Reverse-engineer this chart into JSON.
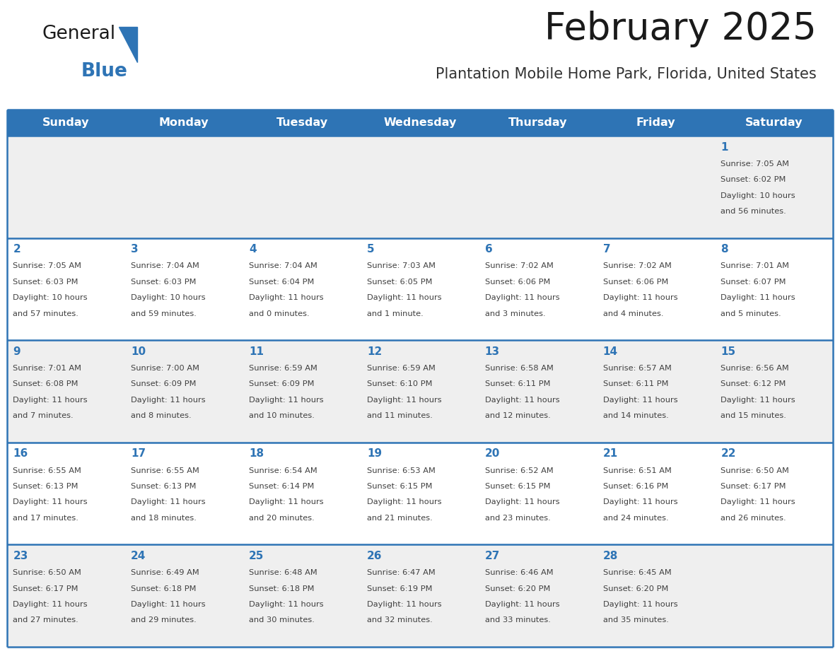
{
  "title": "February 2025",
  "subtitle": "Plantation Mobile Home Park, Florida, United States",
  "header_bg": "#2E74B5",
  "header_text_color": "#FFFFFF",
  "cell_bg_row0": "#EFEFEF",
  "cell_bg_row1": "#FFFFFF",
  "cell_bg_row2": "#EFEFEF",
  "cell_bg_row3": "#FFFFFF",
  "cell_bg_row4": "#EFEFEF",
  "day_number_color": "#2E74B5",
  "info_text_color": "#404040",
  "separator_color": "#2E74B5",
  "days_of_week": [
    "Sunday",
    "Monday",
    "Tuesday",
    "Wednesday",
    "Thursday",
    "Friday",
    "Saturday"
  ],
  "weeks": [
    [
      {
        "day": null,
        "sunrise": null,
        "sunset": null,
        "daylight": null
      },
      {
        "day": null,
        "sunrise": null,
        "sunset": null,
        "daylight": null
      },
      {
        "day": null,
        "sunrise": null,
        "sunset": null,
        "daylight": null
      },
      {
        "day": null,
        "sunrise": null,
        "sunset": null,
        "daylight": null
      },
      {
        "day": null,
        "sunrise": null,
        "sunset": null,
        "daylight": null
      },
      {
        "day": null,
        "sunrise": null,
        "sunset": null,
        "daylight": null
      },
      {
        "day": 1,
        "sunrise": "7:05 AM",
        "sunset": "6:02 PM",
        "daylight": "10 hours\nand 56 minutes."
      }
    ],
    [
      {
        "day": 2,
        "sunrise": "7:05 AM",
        "sunset": "6:03 PM",
        "daylight": "10 hours\nand 57 minutes."
      },
      {
        "day": 3,
        "sunrise": "7:04 AM",
        "sunset": "6:03 PM",
        "daylight": "10 hours\nand 59 minutes."
      },
      {
        "day": 4,
        "sunrise": "7:04 AM",
        "sunset": "6:04 PM",
        "daylight": "11 hours\nand 0 minutes."
      },
      {
        "day": 5,
        "sunrise": "7:03 AM",
        "sunset": "6:05 PM",
        "daylight": "11 hours\nand 1 minute."
      },
      {
        "day": 6,
        "sunrise": "7:02 AM",
        "sunset": "6:06 PM",
        "daylight": "11 hours\nand 3 minutes."
      },
      {
        "day": 7,
        "sunrise": "7:02 AM",
        "sunset": "6:06 PM",
        "daylight": "11 hours\nand 4 minutes."
      },
      {
        "day": 8,
        "sunrise": "7:01 AM",
        "sunset": "6:07 PM",
        "daylight": "11 hours\nand 5 minutes."
      }
    ],
    [
      {
        "day": 9,
        "sunrise": "7:01 AM",
        "sunset": "6:08 PM",
        "daylight": "11 hours\nand 7 minutes."
      },
      {
        "day": 10,
        "sunrise": "7:00 AM",
        "sunset": "6:09 PM",
        "daylight": "11 hours\nand 8 minutes."
      },
      {
        "day": 11,
        "sunrise": "6:59 AM",
        "sunset": "6:09 PM",
        "daylight": "11 hours\nand 10 minutes."
      },
      {
        "day": 12,
        "sunrise": "6:59 AM",
        "sunset": "6:10 PM",
        "daylight": "11 hours\nand 11 minutes."
      },
      {
        "day": 13,
        "sunrise": "6:58 AM",
        "sunset": "6:11 PM",
        "daylight": "11 hours\nand 12 minutes."
      },
      {
        "day": 14,
        "sunrise": "6:57 AM",
        "sunset": "6:11 PM",
        "daylight": "11 hours\nand 14 minutes."
      },
      {
        "day": 15,
        "sunrise": "6:56 AM",
        "sunset": "6:12 PM",
        "daylight": "11 hours\nand 15 minutes."
      }
    ],
    [
      {
        "day": 16,
        "sunrise": "6:55 AM",
        "sunset": "6:13 PM",
        "daylight": "11 hours\nand 17 minutes."
      },
      {
        "day": 17,
        "sunrise": "6:55 AM",
        "sunset": "6:13 PM",
        "daylight": "11 hours\nand 18 minutes."
      },
      {
        "day": 18,
        "sunrise": "6:54 AM",
        "sunset": "6:14 PM",
        "daylight": "11 hours\nand 20 minutes."
      },
      {
        "day": 19,
        "sunrise": "6:53 AM",
        "sunset": "6:15 PM",
        "daylight": "11 hours\nand 21 minutes."
      },
      {
        "day": 20,
        "sunrise": "6:52 AM",
        "sunset": "6:15 PM",
        "daylight": "11 hours\nand 23 minutes."
      },
      {
        "day": 21,
        "sunrise": "6:51 AM",
        "sunset": "6:16 PM",
        "daylight": "11 hours\nand 24 minutes."
      },
      {
        "day": 22,
        "sunrise": "6:50 AM",
        "sunset": "6:17 PM",
        "daylight": "11 hours\nand 26 minutes."
      }
    ],
    [
      {
        "day": 23,
        "sunrise": "6:50 AM",
        "sunset": "6:17 PM",
        "daylight": "11 hours\nand 27 minutes."
      },
      {
        "day": 24,
        "sunrise": "6:49 AM",
        "sunset": "6:18 PM",
        "daylight": "11 hours\nand 29 minutes."
      },
      {
        "day": 25,
        "sunrise": "6:48 AM",
        "sunset": "6:18 PM",
        "daylight": "11 hours\nand 30 minutes."
      },
      {
        "day": 26,
        "sunrise": "6:47 AM",
        "sunset": "6:19 PM",
        "daylight": "11 hours\nand 32 minutes."
      },
      {
        "day": 27,
        "sunrise": "6:46 AM",
        "sunset": "6:20 PM",
        "daylight": "11 hours\nand 33 minutes."
      },
      {
        "day": 28,
        "sunrise": "6:45 AM",
        "sunset": "6:20 PM",
        "daylight": "11 hours\nand 35 minutes."
      },
      {
        "day": null,
        "sunrise": null,
        "sunset": null,
        "daylight": null
      }
    ]
  ]
}
